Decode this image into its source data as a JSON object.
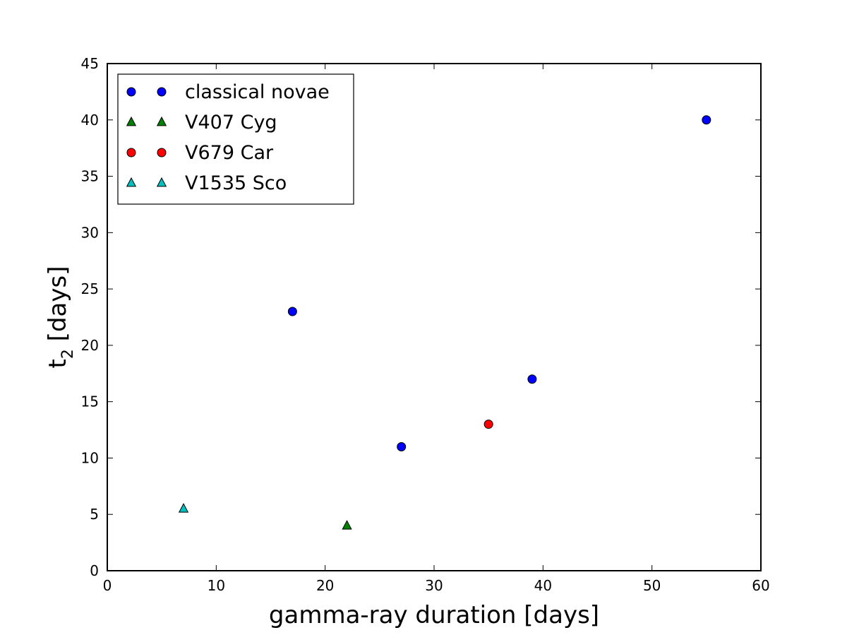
{
  "chart_data": {
    "type": "scatter",
    "title": "",
    "xlabel": "gamma-ray duration [days]",
    "ylabel": {
      "main": "t",
      "sub": "2",
      "rest": " [days]"
    },
    "xlim": [
      0,
      60
    ],
    "ylim": [
      0,
      45
    ],
    "xticks": [
      0,
      10,
      20,
      30,
      40,
      50,
      60
    ],
    "yticks": [
      0,
      5,
      10,
      15,
      20,
      25,
      30,
      35,
      40,
      45
    ],
    "grid": false,
    "legend_position": "top-left",
    "series": [
      {
        "name": "classical novae",
        "marker": "circle",
        "color": "#0000ff",
        "points": [
          {
            "x": 17,
            "y": 23
          },
          {
            "x": 27,
            "y": 11
          },
          {
            "x": 39,
            "y": 17
          },
          {
            "x": 55,
            "y": 40
          }
        ]
      },
      {
        "name": "V407 Cyg",
        "marker": "triangle",
        "color": "#008000",
        "points": [
          {
            "x": 22,
            "y": 4
          }
        ]
      },
      {
        "name": "V679 Car",
        "marker": "circle",
        "color": "#ff0000",
        "points": [
          {
            "x": 35,
            "y": 13
          }
        ]
      },
      {
        "name": "V1535 Sco",
        "marker": "triangle",
        "color": "#00bfbf",
        "points": [
          {
            "x": 7,
            "y": 5.5
          }
        ]
      }
    ]
  }
}
